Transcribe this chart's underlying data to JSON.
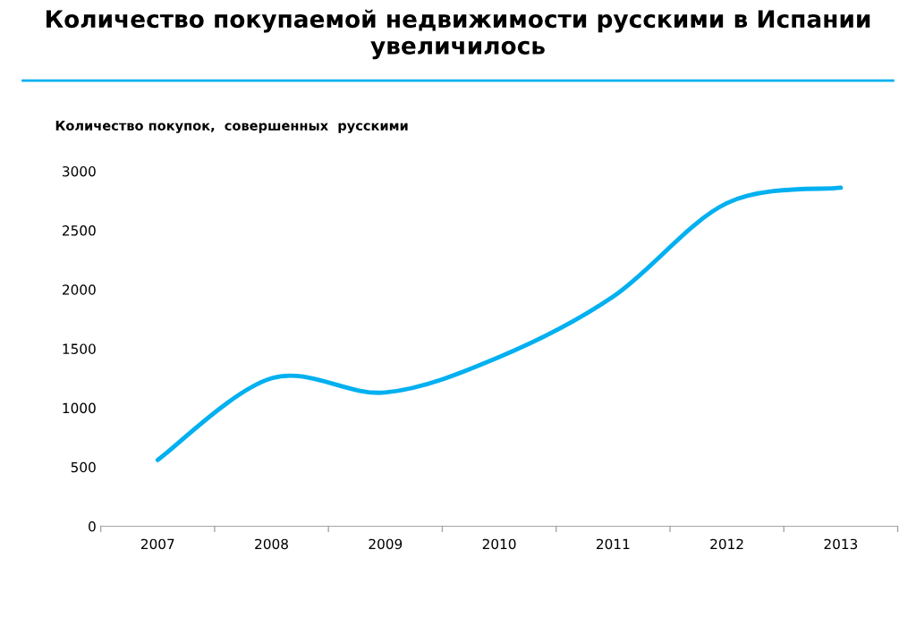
{
  "chart_data": {
    "type": "line",
    "title": "Количество покупаемой недвижимости русскими в Испании увеличилось",
    "ylabel": "Количество покупок,  совершенных  русскими",
    "categories": [
      "2007",
      "2008",
      "2009",
      "2010",
      "2011",
      "2012",
      "2013"
    ],
    "series": [
      {
        "color": "#00b0f0",
        "values": [
          560,
          1250,
          1130,
          1430,
          1940,
          2730,
          2860
        ]
      }
    ],
    "ylim": [
      0,
      3000
    ],
    "yticks": [
      0,
      500,
      1000,
      1500,
      2000,
      2500,
      3000
    ],
    "grid": false,
    "legend": false,
    "marker": "none",
    "line_style": "solid"
  }
}
